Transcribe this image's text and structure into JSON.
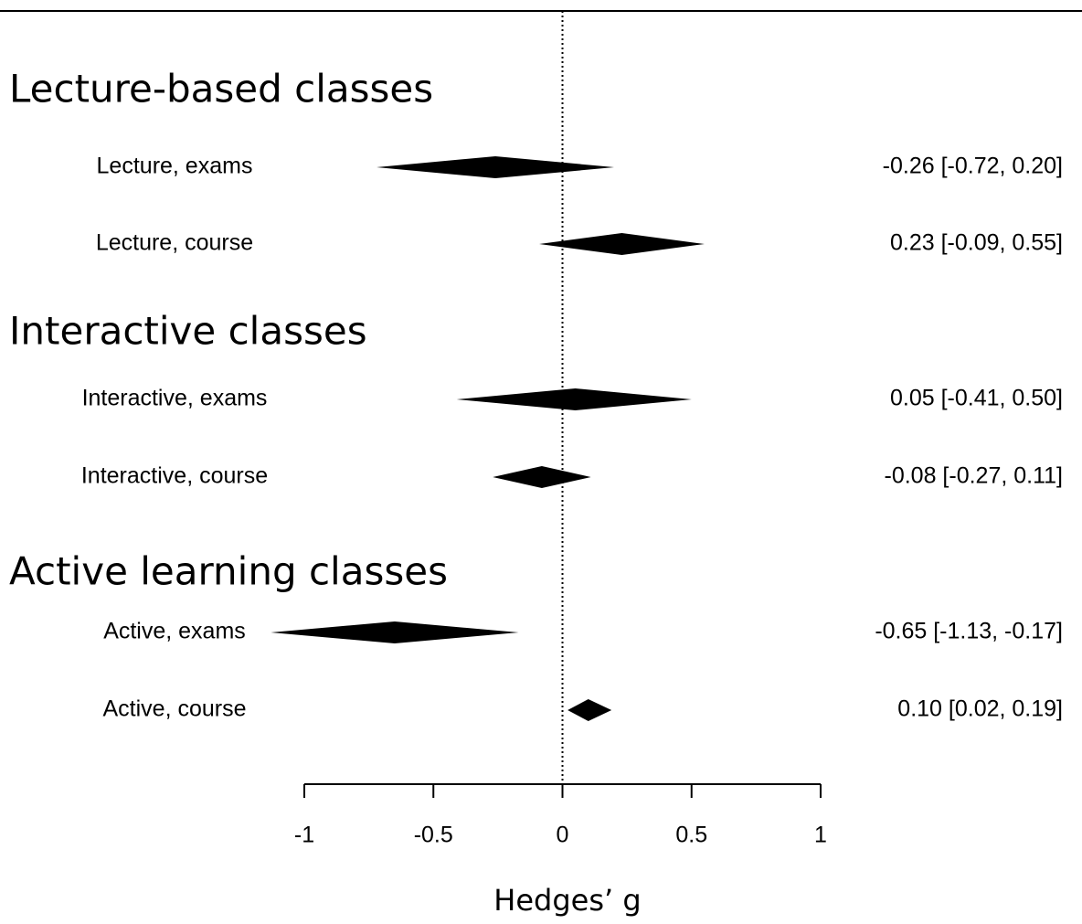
{
  "chart_data": {
    "type": "forest",
    "xlabel": "Hedges’ g",
    "xlim": [
      -1,
      1
    ],
    "xticks": [
      -1,
      -0.5,
      0,
      0.5,
      1
    ],
    "reference_line": 0,
    "color": "#000000",
    "groups": [
      {
        "name": "Lecture-based classes",
        "categories": [
          "Lecture, exams",
          "Lecture, course"
        ],
        "values": [
          -0.26,
          0.23
        ],
        "lower": [
          -0.72,
          -0.09
        ],
        "upper": [
          0.2,
          0.55
        ],
        "value_labels": [
          "-0.26 [-0.72, 0.20]",
          "0.23 [-0.09, 0.55]"
        ]
      },
      {
        "name": "Interactive classes",
        "categories": [
          "Interactive, exams",
          "Interactive, course"
        ],
        "values": [
          0.05,
          -0.08
        ],
        "lower": [
          -0.41,
          -0.27
        ],
        "upper": [
          0.5,
          0.11
        ],
        "value_labels": [
          "0.05 [-0.41, 0.50]",
          "-0.08 [-0.27, 0.11]"
        ]
      },
      {
        "name": "Active learning classes",
        "categories": [
          "Active, exams",
          "Active, course"
        ],
        "values": [
          -0.65,
          0.1
        ],
        "lower": [
          -1.13,
          0.02
        ],
        "upper": [
          -0.17,
          0.19
        ],
        "value_labels": [
          "-0.65 [-1.13, -0.17]",
          "0.10 [0.02, 0.19]"
        ]
      }
    ]
  }
}
